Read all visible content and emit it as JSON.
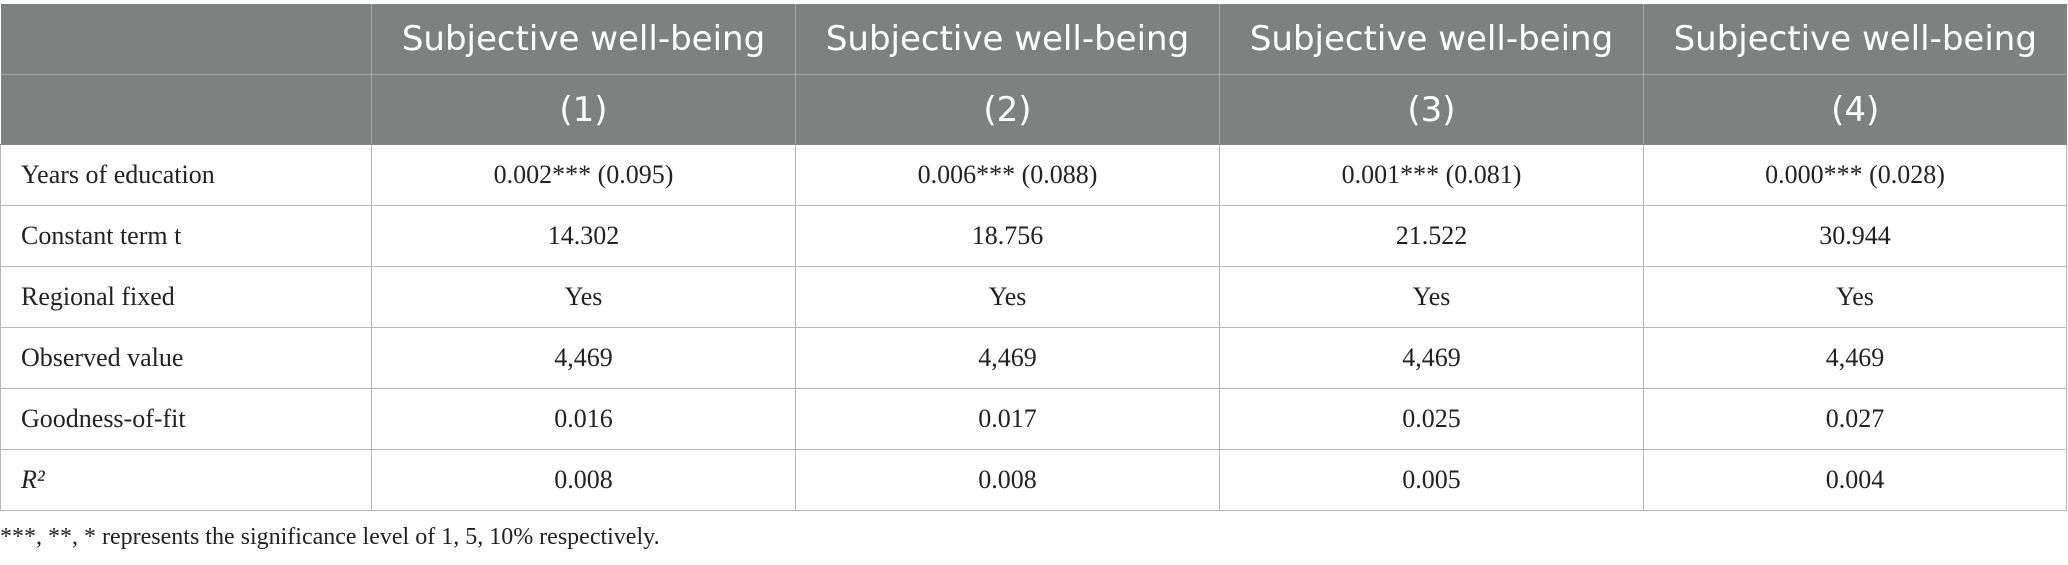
{
  "header": {
    "columns": [
      "Subjective well-being",
      "Subjective well-being",
      "Subjective well-being",
      "Subjective well-being"
    ],
    "numbers": [
      "(1)",
      "(2)",
      "(3)",
      "(4)"
    ]
  },
  "table": {
    "rows": [
      {
        "label": "Years of education",
        "cells": [
          "0.002*** (0.095)",
          "0.006*** (0.088)",
          "0.001*** (0.081)",
          "0.000*** (0.028)"
        ]
      },
      {
        "label": "Constant term t",
        "cells": [
          "14.302",
          "18.756",
          "21.522",
          "30.944"
        ]
      },
      {
        "label": "Regional fixed",
        "cells": [
          "Yes",
          "Yes",
          "Yes",
          "Yes"
        ]
      },
      {
        "label": "Observed value",
        "cells": [
          "4,469",
          "4,469",
          "4,469",
          "4,469"
        ]
      },
      {
        "label": "Goodness-of-fit",
        "cells": [
          "0.016",
          "0.017",
          "0.025",
          "0.027"
        ]
      },
      {
        "label": "R²",
        "cells": [
          "0.008",
          "0.008",
          "0.005",
          "0.004"
        ]
      }
    ]
  },
  "footnote": "***, **, * represents the significance level of 1, 5, 10% respectively."
}
